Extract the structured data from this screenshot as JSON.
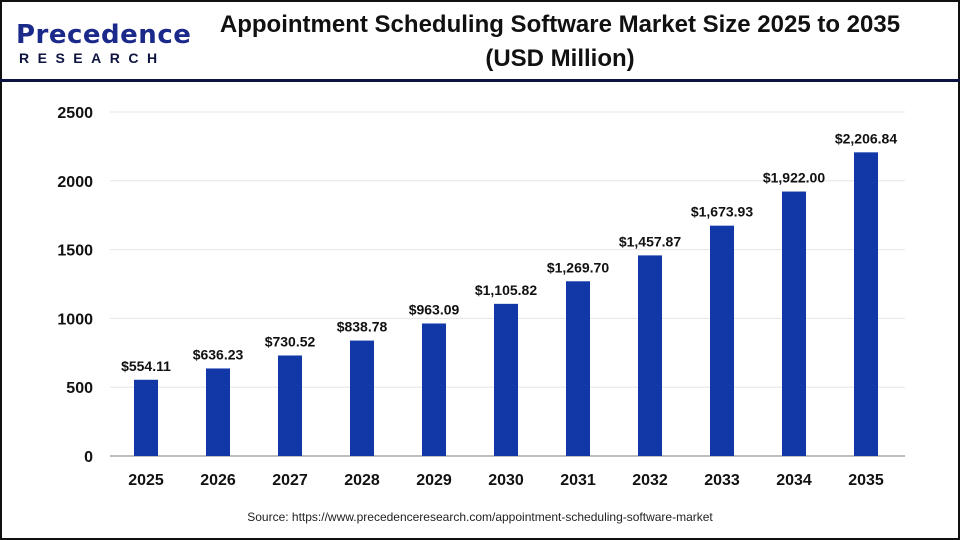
{
  "logo": {
    "main": "Precedence",
    "sub": "RESEARCH"
  },
  "title_line1": "Appointment Scheduling Software Market Size 2025 to 2035",
  "title_line2": "(USD Million)",
  "source": "Source: https://www.precedenceresearch.com/appointment-scheduling-software-market",
  "chart_data": {
    "type": "bar",
    "title": "Appointment Scheduling Software Market Size 2025 to 2035 (USD Million)",
    "categories": [
      "2025",
      "2026",
      "2027",
      "2028",
      "2029",
      "2030",
      "2031",
      "2032",
      "2033",
      "2034",
      "2035"
    ],
    "values": [
      554.11,
      636.23,
      730.52,
      838.78,
      963.09,
      1105.82,
      1269.7,
      1457.87,
      1673.93,
      1922.0,
      2206.84
    ],
    "data_labels": [
      "$554.11",
      "$636.23",
      "$730.52",
      "$838.78",
      "$963.09",
      "$1,105.82",
      "$1,269.70",
      "$1,457.87",
      "$1,673.93",
      "$1,922.00",
      "$2,206.84"
    ],
    "yticks": [
      0,
      500,
      1000,
      1500,
      2000,
      2500
    ],
    "ylim": [
      0,
      2500
    ],
    "grid": true,
    "bar_color": "#1238a8"
  }
}
